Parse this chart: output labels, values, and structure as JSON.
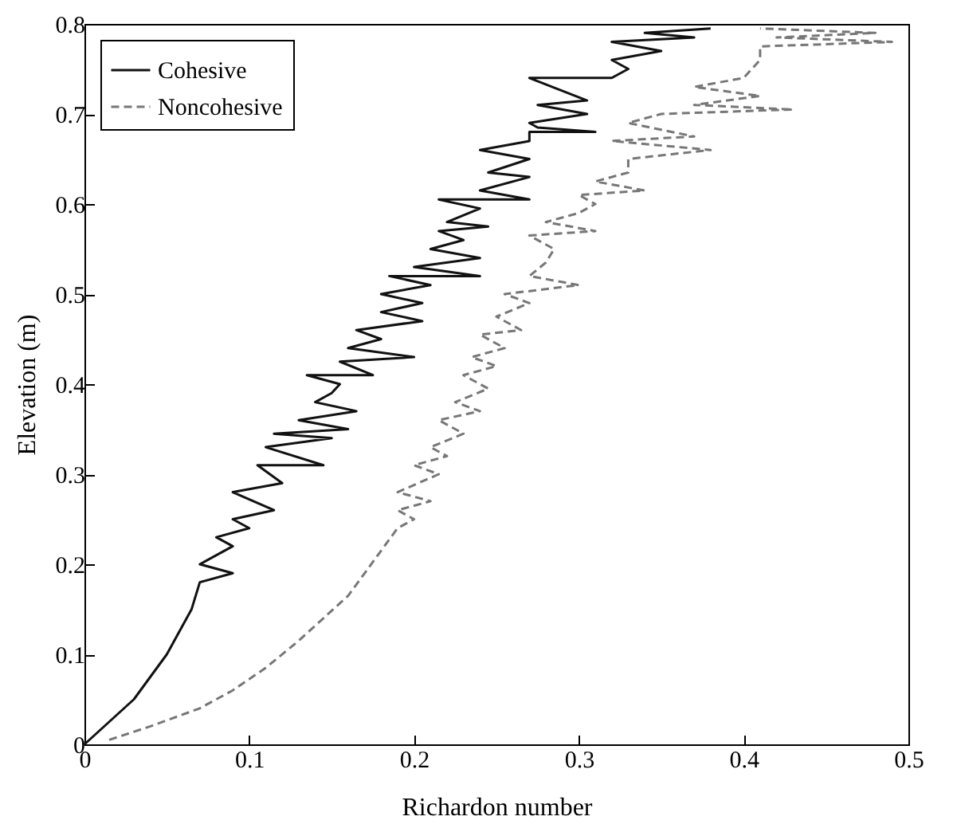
{
  "chart_data": {
    "type": "line",
    "xlabel": "Richardon number",
    "ylabel": "Elevation (m)",
    "xlim": [
      0,
      0.5
    ],
    "ylim": [
      0,
      0.8
    ],
    "xticks": [
      0,
      0.1,
      0.2,
      0.3,
      0.4,
      0.5
    ],
    "yticks": [
      0,
      0.1,
      0.2,
      0.3,
      0.4,
      0.5,
      0.6,
      0.7,
      0.8
    ],
    "legend": "top left",
    "grid": false,
    "series": [
      {
        "name": "Cohesive",
        "color": "#111111",
        "line_style": "solid",
        "x": [
          0,
          0.03,
          0.05,
          0.065,
          0.07,
          0.09,
          0.07,
          0.09,
          0.08,
          0.1,
          0.09,
          0.115,
          0.09,
          0.12,
          0.105,
          0.145,
          0.11,
          0.15,
          0.115,
          0.16,
          0.13,
          0.165,
          0.14,
          0.15,
          0.155,
          0.135,
          0.175,
          0.155,
          0.2,
          0.16,
          0.18,
          0.165,
          0.205,
          0.18,
          0.205,
          0.18,
          0.21,
          0.185,
          0.24,
          0.2,
          0.24,
          0.21,
          0.23,
          0.215,
          0.245,
          0.22,
          0.24,
          0.215,
          0.27,
          0.24,
          0.27,
          0.245,
          0.27,
          0.24,
          0.27,
          0.27,
          0.31,
          0.275,
          0.27,
          0.305,
          0.275,
          0.305,
          0.27,
          0.32,
          0.33,
          0.32,
          0.35,
          0.32,
          0.37,
          0.34,
          0.38
        ],
        "values": [
          0,
          0.05,
          0.1,
          0.15,
          0.18,
          0.19,
          0.2,
          0.22,
          0.23,
          0.24,
          0.25,
          0.26,
          0.28,
          0.29,
          0.31,
          0.31,
          0.33,
          0.34,
          0.345,
          0.35,
          0.36,
          0.37,
          0.38,
          0.39,
          0.4,
          0.41,
          0.41,
          0.425,
          0.43,
          0.44,
          0.45,
          0.46,
          0.47,
          0.48,
          0.49,
          0.5,
          0.51,
          0.52,
          0.52,
          0.53,
          0.54,
          0.55,
          0.56,
          0.57,
          0.575,
          0.58,
          0.595,
          0.605,
          0.605,
          0.615,
          0.63,
          0.635,
          0.65,
          0.66,
          0.67,
          0.68,
          0.68,
          0.685,
          0.69,
          0.7,
          0.71,
          0.715,
          0.74,
          0.74,
          0.75,
          0.76,
          0.77,
          0.78,
          0.785,
          0.79,
          0.795
        ]
      },
      {
        "name": "Noncohesive",
        "color": "#777777",
        "line_style": "dashed",
        "x": [
          0.015,
          0.04,
          0.07,
          0.09,
          0.11,
          0.13,
          0.145,
          0.16,
          0.17,
          0.18,
          0.19,
          0.2,
          0.19,
          0.21,
          0.19,
          0.215,
          0.2,
          0.22,
          0.21,
          0.23,
          0.215,
          0.24,
          0.225,
          0.245,
          0.23,
          0.25,
          0.235,
          0.255,
          0.24,
          0.265,
          0.25,
          0.27,
          0.255,
          0.3,
          0.27,
          0.28,
          0.285,
          0.27,
          0.31,
          0.28,
          0.3,
          0.31,
          0.3,
          0.34,
          0.31,
          0.33,
          0.33,
          0.38,
          0.32,
          0.37,
          0.33,
          0.35,
          0.43,
          0.37,
          0.41,
          0.37,
          0.4,
          0.41,
          0.41,
          0.49,
          0.42,
          0.48,
          0.41
        ],
        "values": [
          0.005,
          0.02,
          0.04,
          0.06,
          0.085,
          0.115,
          0.14,
          0.165,
          0.19,
          0.215,
          0.24,
          0.25,
          0.26,
          0.27,
          0.28,
          0.3,
          0.31,
          0.32,
          0.33,
          0.345,
          0.36,
          0.37,
          0.38,
          0.395,
          0.41,
          0.42,
          0.43,
          0.44,
          0.455,
          0.46,
          0.475,
          0.49,
          0.5,
          0.51,
          0.52,
          0.535,
          0.55,
          0.565,
          0.57,
          0.58,
          0.59,
          0.6,
          0.61,
          0.615,
          0.625,
          0.635,
          0.65,
          0.66,
          0.67,
          0.675,
          0.69,
          0.7,
          0.705,
          0.71,
          0.72,
          0.73,
          0.74,
          0.76,
          0.775,
          0.78,
          0.785,
          0.79,
          0.795
        ]
      }
    ]
  }
}
